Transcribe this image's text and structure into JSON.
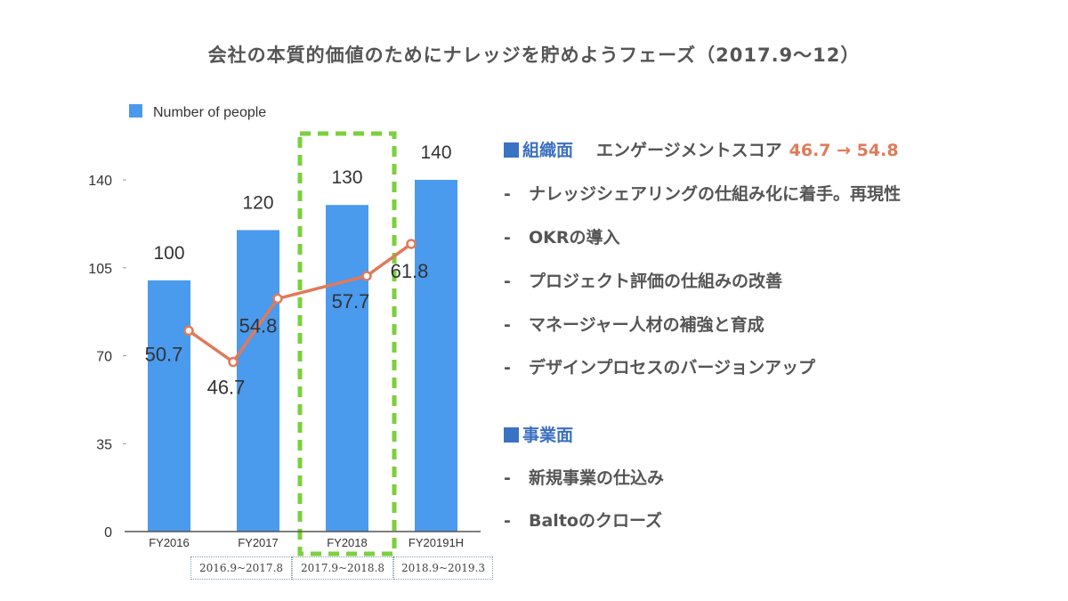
{
  "title": "会社の本質的価値のためにナレッジを貯めようフェーズ（2017.9〜12）",
  "colors": {
    "bar": "#4a9aee",
    "line": "#e07a5a",
    "highlight": "#7ccf3e",
    "heading": "#3b6fc0"
  },
  "chart_data": {
    "type": "bar",
    "legend": "Number of people",
    "legend_position": "top-left",
    "categories": [
      "FY2016",
      "FY2017",
      "FY2018",
      "FY20191H"
    ],
    "ylim": [
      0,
      140
    ],
    "yticks": [
      0,
      35,
      70,
      105,
      140
    ],
    "ytick_labels": [
      "0",
      "35",
      "70",
      "105",
      "140"
    ],
    "series": [
      {
        "name": "Number of people",
        "type": "bar",
        "values": [
          100,
          120,
          130,
          140
        ],
        "labels": [
          "100",
          "120",
          "130",
          "140"
        ]
      }
    ],
    "overlay_line": {
      "name": "エンゲージメントスコア",
      "points": [
        {
          "position": 0.5,
          "value": 50.7,
          "label": "50.7"
        },
        {
          "position": 1.0,
          "value": 46.7,
          "label": "46.7"
        },
        {
          "position": 1.5,
          "value": 54.8,
          "label": "54.8"
        },
        {
          "position": 2.5,
          "value": 57.7,
          "label": "57.7"
        },
        {
          "position": 3.0,
          "value": 61.8,
          "label": "61.8"
        }
      ],
      "ylim": [
        25,
        70
      ]
    },
    "highlighted_category": "FY2018",
    "period_labels": [
      "2016.9~2017.8",
      "2017.9~2018.8",
      "2018.9~2019.3"
    ]
  },
  "notes": {
    "section1": {
      "heading": "組織面",
      "subject": "エンゲージメントスコア",
      "score": "46.7 → 54.8",
      "items": [
        "ナレッジシェアリングの仕組み化に着手。再現性",
        "OKRの導入",
        "プロジェクト評価の仕組みの改善",
        "マネージャー人材の補強と育成",
        "デザインプロセスのバージョンアップ"
      ]
    },
    "section2": {
      "heading": "事業面",
      "items": [
        "新規事業の仕込み",
        "Baltoのクローズ"
      ]
    },
    "bullet": "-"
  }
}
